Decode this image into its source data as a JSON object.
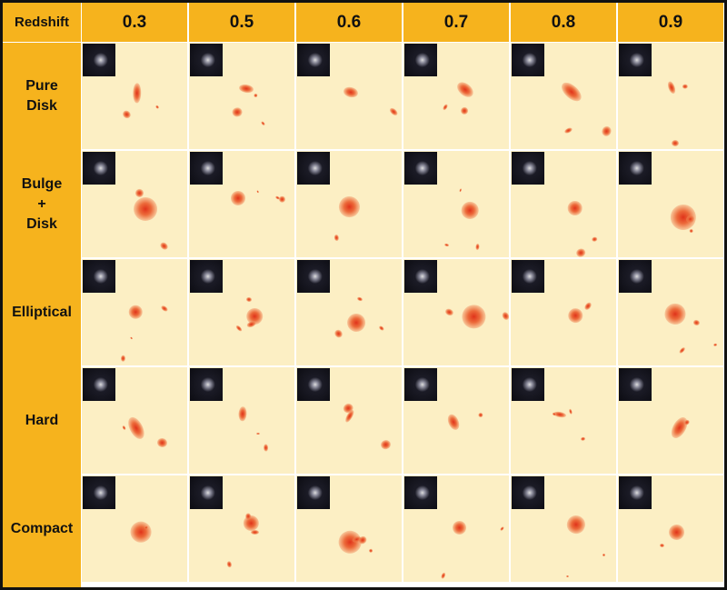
{
  "table": {
    "corner": "Redshift",
    "columns": [
      "0.3",
      "0.5",
      "0.6",
      "0.7",
      "0.8",
      "0.9"
    ],
    "rows": [
      "Pure\nDisk",
      "Bulge\n+\nDisk",
      "Elliptical",
      "Hard",
      "Compact"
    ]
  }
}
